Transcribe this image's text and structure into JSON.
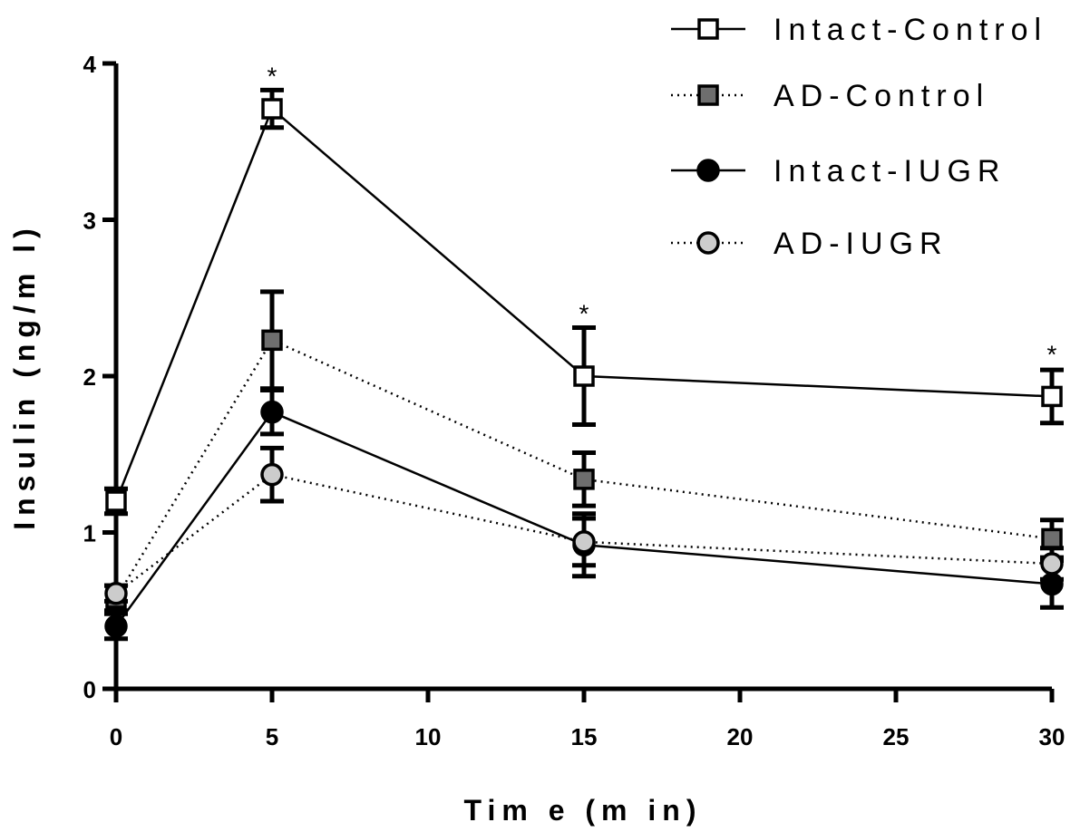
{
  "chart_data": {
    "type": "line",
    "title": "",
    "xlabel": "Tim e (m in)",
    "ylabel": "Insulin (ng/m l)",
    "xlim": [
      0,
      30
    ],
    "ylim": [
      0,
      4
    ],
    "xticks": [
      0,
      5,
      10,
      15,
      20,
      25,
      30
    ],
    "yticks": [
      0,
      1,
      2,
      3,
      4
    ],
    "x": [
      0,
      5,
      15,
      30
    ],
    "grid": false,
    "legend_position": "top-right",
    "series": [
      {
        "name": "Intact-Control",
        "marker": "open-square",
        "line": "solid",
        "fill": "#ffffff",
        "values": [
          1.2,
          3.71,
          2.0,
          1.87
        ],
        "errors": [
          0.08,
          0.12,
          0.31,
          0.17
        ]
      },
      {
        "name": "AD-Control",
        "marker": "filled-square",
        "line": "dotted",
        "fill": "#6e6e6e",
        "values": [
          0.58,
          2.23,
          1.34,
          0.96
        ],
        "errors": [
          0.08,
          0.31,
          0.17,
          0.12
        ]
      },
      {
        "name": "Intact-IUGR",
        "marker": "filled-circle",
        "line": "solid",
        "fill": "#000000",
        "values": [
          0.4,
          1.77,
          0.92,
          0.67
        ],
        "errors": [
          0.08,
          0.14,
          0.2,
          0.15
        ]
      },
      {
        "name": "AD-IUGR",
        "marker": "open-circle",
        "line": "dotted",
        "fill": "#cccccc",
        "values": [
          0.61,
          1.37,
          0.94,
          0.8
        ],
        "errors": [
          0.05,
          0.17,
          0.15,
          0.1
        ]
      }
    ],
    "annotations": [
      {
        "text": "*",
        "x": 5,
        "y": 3.83
      },
      {
        "text": "*",
        "x": 15,
        "y": 2.31
      },
      {
        "text": "*",
        "x": 30,
        "y": 2.05
      }
    ]
  }
}
